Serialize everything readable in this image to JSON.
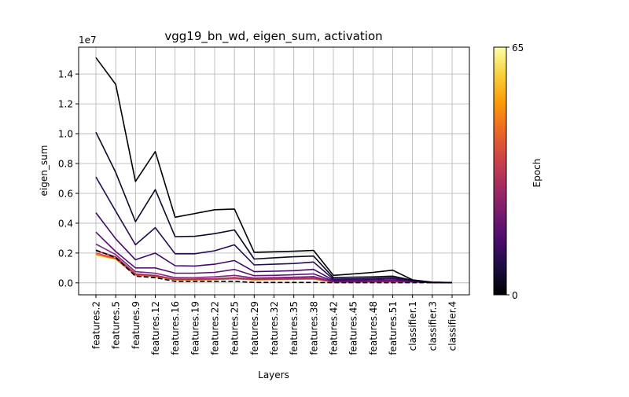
{
  "chart_data": {
    "type": "line",
    "title": "vgg19_bn_wd, eigen_sum, activation",
    "xlabel": "Layers",
    "ylabel": "eigen_sum",
    "y_scale_label": "1e7",
    "y_multiplier": 10000000,
    "ylim": [
      -0.08,
      1.58
    ],
    "yticks": [
      0.0,
      0.2,
      0.4,
      0.6,
      0.8,
      1.0,
      1.2,
      1.4
    ],
    "ytick_labels": [
      "0.0",
      "0.2",
      "0.4",
      "0.6",
      "0.8",
      "1.0",
      "1.2",
      "1.4"
    ],
    "grid": true,
    "categories": [
      "features.2",
      "features.5",
      "features.9",
      "features.12",
      "features.16",
      "features.19",
      "features.22",
      "features.25",
      "features.29",
      "features.32",
      "features.35",
      "features.38",
      "features.42",
      "features.45",
      "features.48",
      "features.51",
      "classifier.1",
      "classifier.3",
      "classifier.4"
    ],
    "series": [
      {
        "epoch": 0,
        "color": "#000004",
        "values": [
          1.51,
          1.33,
          0.68,
          0.88,
          0.44,
          0.465,
          0.49,
          0.495,
          0.205,
          0.208,
          0.212,
          0.218,
          0.05,
          0.06,
          0.07,
          0.085,
          0.02,
          0.005,
          0.002
        ]
      },
      {
        "epoch": 3,
        "color": "#0c0826",
        "values": [
          1.01,
          0.74,
          0.41,
          0.625,
          0.31,
          0.312,
          0.33,
          0.355,
          0.16,
          0.168,
          0.175,
          0.18,
          0.035,
          0.038,
          0.04,
          0.045,
          0.018,
          0.004,
          0.002
        ]
      },
      {
        "epoch": 6,
        "color": "#240c4f",
        "values": [
          0.71,
          0.48,
          0.255,
          0.37,
          0.195,
          0.195,
          0.215,
          0.255,
          0.12,
          0.125,
          0.13,
          0.14,
          0.025,
          0.027,
          0.03,
          0.035,
          0.015,
          0.003,
          0.001
        ]
      },
      {
        "epoch": 10,
        "color": "#420a68",
        "values": [
          0.47,
          0.295,
          0.155,
          0.2,
          0.115,
          0.113,
          0.125,
          0.15,
          0.075,
          0.078,
          0.082,
          0.09,
          0.018,
          0.02,
          0.022,
          0.027,
          0.012,
          0.002,
          0.001
        ]
      },
      {
        "epoch": 14,
        "color": "#5c126e",
        "values": [
          0.34,
          0.21,
          0.1,
          0.1,
          0.065,
          0.065,
          0.07,
          0.09,
          0.048,
          0.05,
          0.055,
          0.06,
          0.012,
          0.013,
          0.015,
          0.018,
          0.01,
          0.002,
          0.001
        ]
      },
      {
        "epoch": 20,
        "color": "#7e2482",
        "values": [
          0.26,
          0.19,
          0.075,
          0.065,
          0.035,
          0.036,
          0.04,
          0.05,
          0.032,
          0.035,
          0.038,
          0.042,
          0.009,
          0.01,
          0.011,
          0.013,
          0.008,
          0.002,
          0.001
        ]
      },
      {
        "epoch": 28,
        "color": "#a52c60",
        "values": [
          0.215,
          0.175,
          0.06,
          0.05,
          0.025,
          0.026,
          0.028,
          0.035,
          0.025,
          0.027,
          0.03,
          0.033,
          0.007,
          0.008,
          0.009,
          0.01,
          0.007,
          0.002,
          0.001
        ]
      },
      {
        "epoch": 38,
        "color": "#d44842",
        "values": [
          0.2,
          0.165,
          0.055,
          0.045,
          0.022,
          0.022,
          0.024,
          0.03,
          0.022,
          0.024,
          0.026,
          0.028,
          0.006,
          0.007,
          0.008,
          0.009,
          0.006,
          0.002,
          0.001
        ]
      },
      {
        "epoch": 48,
        "color": "#f37819",
        "values": [
          0.19,
          0.16,
          0.052,
          0.042,
          0.02,
          0.02,
          0.022,
          0.027,
          0.02,
          0.022,
          0.024,
          0.026,
          0.006,
          0.006,
          0.007,
          0.008,
          0.006,
          0.002,
          0.001
        ]
      },
      {
        "epoch": 65,
        "color": "#fcffa4",
        "values": [
          0.18,
          0.155,
          0.05,
          0.04,
          0.019,
          0.019,
          0.021,
          0.025,
          0.019,
          0.021,
          0.023,
          0.025,
          0.005,
          0.006,
          0.006,
          0.007,
          0.005,
          0.002,
          0.001
        ]
      }
    ],
    "reference_series": {
      "style": "dashed",
      "color": "#000000",
      "values": [
        0.22,
        0.17,
        0.045,
        0.035,
        0.01,
        0.01,
        0.01,
        0.01,
        0.003,
        0.003,
        0.003,
        0.003,
        0.001,
        0.001,
        0.001,
        0.001,
        0.001,
        0.001,
        0.001
      ]
    },
    "colorbar": {
      "label": "Epoch",
      "min": 0,
      "max": 65,
      "min_label": "0",
      "max_label": "65",
      "colormap": "inferno",
      "stops": [
        "#000004",
        "#1b0c41",
        "#4a0c6b",
        "#781c6d",
        "#a52c60",
        "#cf4446",
        "#ed6925",
        "#fb9b06",
        "#f7d13d",
        "#fcffa4"
      ]
    }
  }
}
